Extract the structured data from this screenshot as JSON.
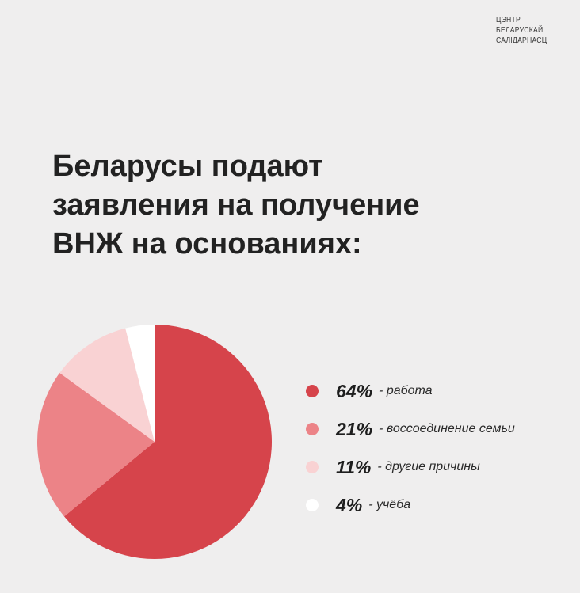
{
  "logo": {
    "lines": [
      "ЦЭНТР",
      "БЕЛАРУСКАЙ",
      "САЛІДАРНАСЦІ"
    ],
    "color": "#d8282f"
  },
  "title": {
    "lines": [
      "Беларусы подают",
      "заявления на получение",
      "ВНЖ на основаниях:"
    ]
  },
  "chart_data": {
    "type": "pie",
    "title": "Беларусы подают заявления на получение ВНЖ на основаниях:",
    "legend_position": "right",
    "slices": [
      {
        "label": "работа",
        "value": 64,
        "display": "64%",
        "color": "#d6444b"
      },
      {
        "label": "воссоединение семьи",
        "value": 21,
        "display": "21%",
        "color": "#ec8387"
      },
      {
        "label": "другие причины",
        "value": 11,
        "display": "11%",
        "color": "#f9d2d3"
      },
      {
        "label": "учёба",
        "value": 4,
        "display": "4%",
        "color": "#ffffff"
      }
    ]
  }
}
